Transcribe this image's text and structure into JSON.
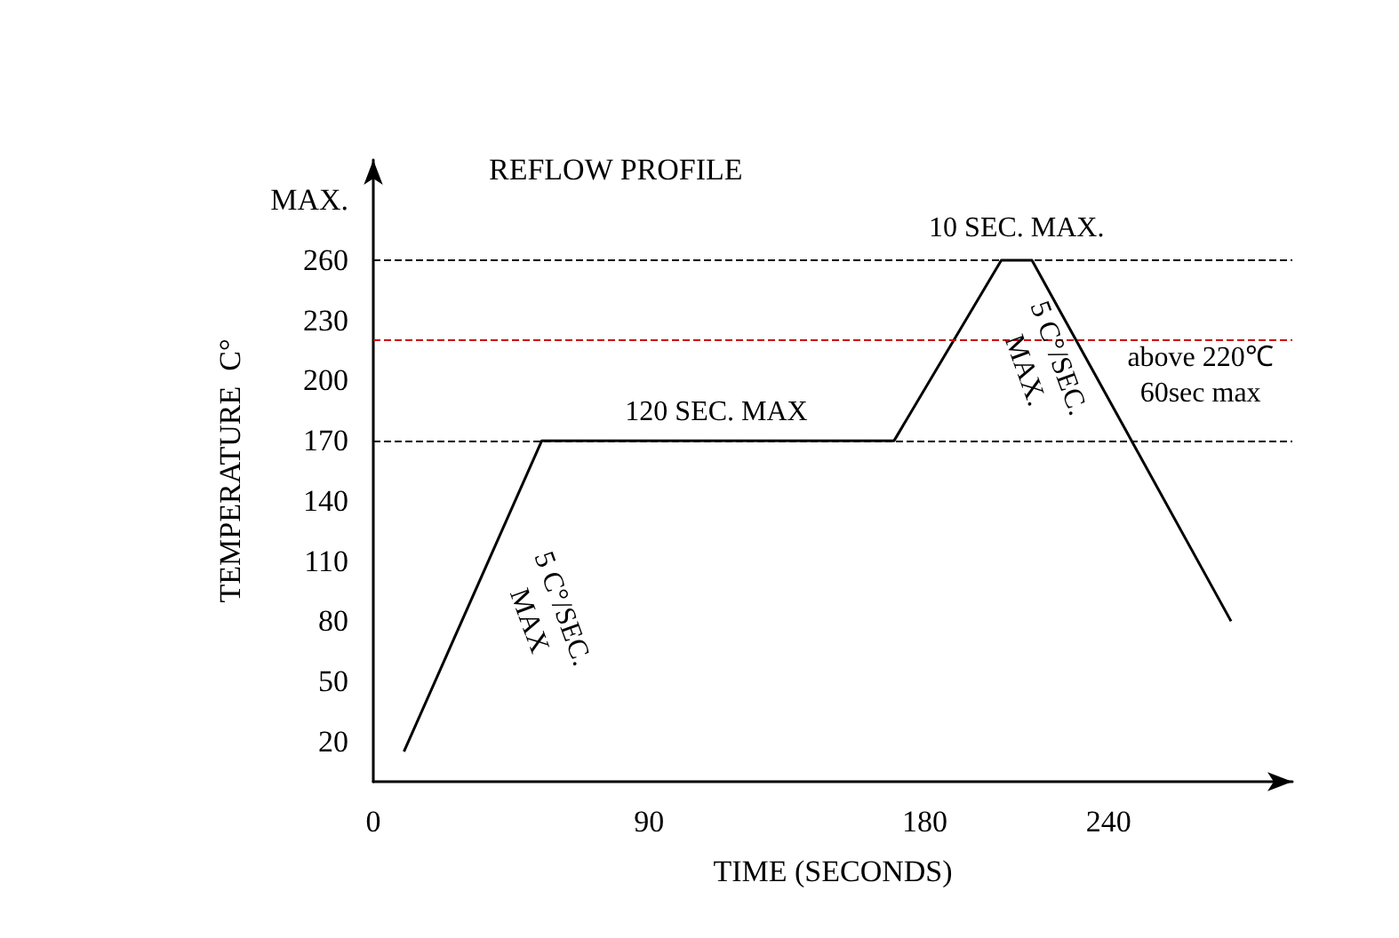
{
  "chart_data": {
    "type": "line",
    "title": "REFLOW PROFILE",
    "xlabel": "TIME (SECONDS)",
    "ylabel": "TEMPERATURE  C°",
    "x": [
      10,
      55,
      170,
      205,
      215,
      280
    ],
    "series": [
      {
        "color": "#000000",
        "values": [
          15,
          170,
          170,
          260,
          260,
          80
        ]
      }
    ],
    "xlim": [
      0,
      300
    ],
    "xticks": [
      0,
      90,
      180,
      240
    ],
    "ylim": [
      0,
      310
    ],
    "yticks": [
      20,
      50,
      80,
      110,
      140,
      170,
      200,
      230,
      260,
      {
        "value": 290,
        "label": "MAX."
      }
    ],
    "grid": false,
    "marker": "none",
    "line_style": "solid",
    "ref_lines": [
      {
        "axis": "y",
        "value": 260,
        "label": null,
        "color": "#000000",
        "line_style": "dashed"
      },
      {
        "axis": "y",
        "value": 170,
        "label": null,
        "color": "#000000",
        "line_style": "dashed"
      },
      {
        "axis": "y",
        "value": 220,
        "label": null,
        "color": "#cc0000",
        "line_style": "dashed"
      }
    ],
    "annotations": [
      {
        "text": "10 SEC. MAX.",
        "x": 210,
        "y": 260
      },
      {
        "text": "120 SEC. MAX",
        "x": 112,
        "y": 170
      },
      "5 C°/SEC.\nMAX",
      "5 C°/SEC.\nMAX.",
      {
        "text": "above 220℃\n60sec max",
        "x": 270,
        "y": 220
      }
    ]
  }
}
